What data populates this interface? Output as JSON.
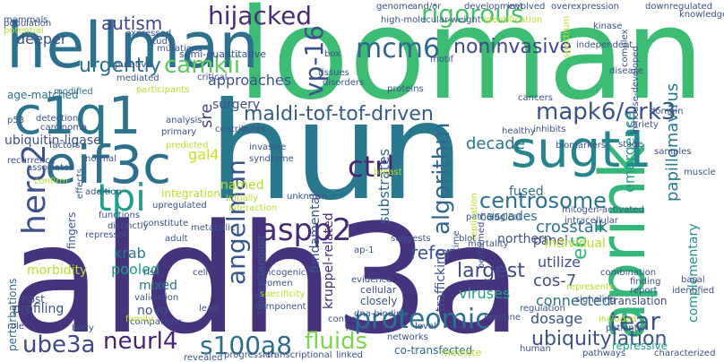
{
  "words": [
    {
      "text": "hun",
      "color": "#2a788e"
    },
    {
      "text": "aldh3a",
      "color": "#46337e"
    },
    {
      "text": "looman",
      "color": "#3dbc74"
    },
    {
      "text": "hellman",
      "color": "#2c728e"
    },
    {
      "text": "aprink",
      "color": "#35b779"
    },
    {
      "text": "c1q1",
      "color": "#2b758e"
    },
    {
      "text": "eif3c",
      "color": "#2d708e"
    },
    {
      "text": "sugt1",
      "color": "#25858e"
    },
    {
      "text": "mapk6/erk3",
      "color": "#3b528b"
    },
    {
      "text": "maldi-tof-tof-driven",
      "color": "#365c8d"
    },
    {
      "text": "vp-16",
      "color": "#3b528b"
    },
    {
      "text": "mcm6",
      "color": "#31688e"
    },
    {
      "text": "rigorous",
      "color": "#4ac16d"
    },
    {
      "text": "hijacked",
      "color": "#472d7b"
    },
    {
      "text": "noninvasive",
      "color": "#3e4989"
    },
    {
      "text": "tpi",
      "color": "#1fa088"
    },
    {
      "text": "camkii",
      "color": "#5ec962"
    },
    {
      "text": "urgently",
      "color": "#2d708e"
    },
    {
      "text": "autism",
      "color": "#404688"
    },
    {
      "text": "deeper",
      "color": "#3b528b"
    },
    {
      "text": "herc2",
      "color": "#3b528b"
    },
    {
      "text": "angelman",
      "color": "#39568c"
    },
    {
      "text": "aspp2",
      "color": "#472a7a"
    },
    {
      "text": "ctrl",
      "color": "#482475"
    },
    {
      "text": "algorithm",
      "color": "#31688e"
    },
    {
      "text": "centrosome",
      "color": "#2c728e"
    },
    {
      "text": "proteomic",
      "color": "#2c738e"
    },
    {
      "text": "tear",
      "color": "#3b528b"
    },
    {
      "text": "neurl4",
      "color": "#482374"
    },
    {
      "text": "s100a8",
      "color": "#2f6c8e"
    },
    {
      "text": "ube3a",
      "color": "#3e4989"
    },
    {
      "text": "fluids",
      "color": "#7fd34e"
    },
    {
      "text": "ubiquitylation",
      "color": "#3b528b"
    },
    {
      "text": "papillomavirus",
      "color": "#2a788e"
    },
    {
      "text": "emergence",
      "color": "#1fa088"
    },
    {
      "text": "complementary",
      "color": "#21918c"
    },
    {
      "text": "approaches",
      "color": "#3b528b"
    },
    {
      "text": "ubiquitin-ligase",
      "color": "#3b528b"
    },
    {
      "text": "surgery",
      "color": "#3b528b"
    },
    {
      "text": "sre",
      "color": "#3e4989"
    },
    {
      "text": "gal4",
      "color": "#c8e020"
    },
    {
      "text": "decade",
      "color": "#2c738e"
    },
    {
      "text": "fused",
      "color": "#2c728e"
    },
    {
      "text": "named",
      "color": "#b5de2b"
    },
    {
      "text": "krab",
      "color": "#2a788e"
    },
    {
      "text": "pooled",
      "color": "#1fa088"
    },
    {
      "text": "mixed",
      "color": "#2c728e"
    },
    {
      "text": "largest",
      "color": "#3e4989"
    },
    {
      "text": "refer",
      "color": "#3b528b"
    },
    {
      "text": "e6",
      "color": "#35b779"
    },
    {
      "text": "cos-7",
      "color": "#3b528b"
    },
    {
      "text": "dosage",
      "color": "#3b528b"
    },
    {
      "text": "crosstalk",
      "color": "#2c728e"
    },
    {
      "text": "panel",
      "color": "#404688"
    },
    {
      "text": "viruses",
      "color": "#1fa088"
    },
    {
      "text": "utilize",
      "color": "#3b528b"
    },
    {
      "text": "connected",
      "color": "#2c728e"
    },
    {
      "text": "northern",
      "color": "#3b528b"
    },
    {
      "text": "cascades",
      "color": "#2c728e"
    },
    {
      "text": "individual",
      "color": "#b5de2b"
    },
    {
      "text": "kruppel-related",
      "color": "#472d7b"
    },
    {
      "text": "substrates",
      "color": "#31688e"
    },
    {
      "text": "fundamental",
      "color": "#3b528b"
    },
    {
      "text": "understanding",
      "color": "#3b528b"
    },
    {
      "text": "morbidity",
      "color": "#b5de2b"
    },
    {
      "text": "perturbations",
      "color": "#31688e"
    },
    {
      "text": "fingers",
      "color": "#3b528b"
    },
    {
      "text": "novo",
      "color": "#3b528b"
    },
    {
      "text": "trafficking",
      "color": "#3b528b"
    },
    {
      "text": "translation",
      "color": "#3e4989"
    },
    {
      "text": "repressive",
      "color": "#1fa088"
    },
    {
      "text": "co-transfected",
      "color": "#31688e"
    },
    {
      "text": "profiling",
      "color": "#3b528b"
    },
    {
      "text": "host",
      "color": "#3b528b"
    },
    {
      "text": "semi-quantitative",
      "color": "#3b528b"
    },
    {
      "text": "mammals",
      "color": "#3b528b"
    },
    {
      "text": "box",
      "color": "#3b528b"
    },
    {
      "text": "motif",
      "color": "#3b528b"
    },
    {
      "text": "age-matched",
      "color": "#2c728e"
    },
    {
      "text": "participants",
      "color": "#b5de2b"
    },
    {
      "text": "modified",
      "color": "#2c728e"
    },
    {
      "text": "critical",
      "color": "#3b528b"
    },
    {
      "text": "tissues",
      "color": "#3b528b"
    },
    {
      "text": "disorders",
      "color": "#3b528b"
    },
    {
      "text": "proteins",
      "color": "#3b528b"
    },
    {
      "text": "high-molecular-weight",
      "color": "#3b528b"
    },
    {
      "text": "identification",
      "color": "#b5de2b"
    },
    {
      "text": "overexpression",
      "color": "#3b528b"
    },
    {
      "text": "downregulated",
      "color": "#3b528b"
    },
    {
      "text": "knowledge",
      "color": "#3b528b"
    },
    {
      "text": "kinase",
      "color": "#3b528b"
    },
    {
      "text": "complex",
      "color": "#3b528b"
    },
    {
      "text": "independent",
      "color": "#3b528b"
    },
    {
      "text": "disease",
      "color": "#3b528b"
    },
    {
      "text": "spectrum",
      "color": "#b5de2b"
    },
    {
      "text": "in-house-developed",
      "color": "#3b528b"
    },
    {
      "text": "domain",
      "color": "#3b528b"
    },
    {
      "text": "cancers",
      "color": "#3b528b"
    },
    {
      "text": "healthy",
      "color": "#3b528b"
    },
    {
      "text": "inhibits",
      "color": "#3b528b"
    },
    {
      "text": "biomarkers",
      "color": "#3b528b"
    },
    {
      "text": "variety",
      "color": "#3b528b"
    },
    {
      "text": "stage",
      "color": "#3b528b"
    },
    {
      "text": "samples",
      "color": "#3b528b"
    },
    {
      "text": "muscle",
      "color": "#3b528b"
    },
    {
      "text": "mitogen-activated",
      "color": "#3b528b"
    },
    {
      "text": "intracellular",
      "color": "#3b528b"
    },
    {
      "text": "pathological",
      "color": "#3b528b"
    },
    {
      "text": "replication",
      "color": "#b5de2b"
    },
    {
      "text": "mortality",
      "color": "#3b528b"
    },
    {
      "text": "combination",
      "color": "#3b528b"
    },
    {
      "text": "represents",
      "color": "#b5de2b"
    },
    {
      "text": "signaling",
      "color": "#3b528b"
    },
    {
      "text": "finding",
      "color": "#3b528b"
    },
    {
      "text": "report",
      "color": "#3b528b"
    },
    {
      "text": "basal",
      "color": "#3b528b"
    },
    {
      "text": "identified",
      "color": "#3b528b"
    },
    {
      "text": "regulation",
      "color": "#3b528b"
    },
    {
      "text": "included",
      "color": "#b5de2b"
    },
    {
      "text": "patients",
      "color": "#3b528b"
    },
    {
      "text": "pathways",
      "color": "#3b528b"
    },
    {
      "text": "characterized",
      "color": "#3b528b"
    },
    {
      "text": "human",
      "color": "#3b528b"
    },
    {
      "text": "immune",
      "color": "#3b528b"
    },
    {
      "text": "mediate",
      "color": "#b5de2b"
    },
    {
      "text": "ap-1",
      "color": "#3b528b"
    },
    {
      "text": "suggests",
      "color": "#3b528b"
    },
    {
      "text": "blot",
      "color": "#3b528b"
    },
    {
      "text": "time",
      "color": "#3b528b"
    },
    {
      "text": "performed",
      "color": "#3b528b"
    },
    {
      "text": "interaction",
      "color": "#b5de2b"
    },
    {
      "text": "initially",
      "color": "#b5de2b"
    },
    {
      "text": "unknown",
      "color": "#3b528b"
    },
    {
      "text": "breast",
      "color": "#b5de2b"
    },
    {
      "text": "invasive",
      "color": "#3b528b"
    },
    {
      "text": "syndrome",
      "color": "#3b528b"
    },
    {
      "text": "evidence",
      "color": "#3b528b"
    },
    {
      "text": "cellular",
      "color": "#3b528b"
    },
    {
      "text": "closely",
      "color": "#3b528b"
    },
    {
      "text": "dna-binding",
      "color": "#3b528b"
    },
    {
      "text": "mapk",
      "color": "#3b528b"
    },
    {
      "text": "level",
      "color": "#3b528b"
    },
    {
      "text": "networks",
      "color": "#3b528b"
    },
    {
      "text": "control",
      "color": "#3b528b"
    },
    {
      "text": "linked",
      "color": "#3b528b"
    },
    {
      "text": "oncogenic",
      "color": "#3b528b"
    },
    {
      "text": "women",
      "color": "#3b528b"
    },
    {
      "text": "specificity",
      "color": "#b5de2b"
    },
    {
      "text": "component",
      "color": "#3b528b"
    },
    {
      "text": "transcriptional",
      "color": "#3b528b"
    },
    {
      "text": "progression",
      "color": "#3b528b"
    },
    {
      "text": "revealed",
      "color": "#3b528b"
    },
    {
      "text": "adult",
      "color": "#3b528b"
    },
    {
      "text": "metabolic",
      "color": "#3b528b"
    },
    {
      "text": "validation",
      "color": "#3b528b"
    },
    {
      "text": "comparison",
      "color": "#3b528b"
    },
    {
      "text": "family",
      "color": "#b5de2b"
    },
    {
      "text": "lead",
      "color": "#3b528b"
    },
    {
      "text": "functions",
      "color": "#3b528b"
    },
    {
      "text": "repressor",
      "color": "#3b528b"
    },
    {
      "text": "constitute",
      "color": "#3b528b"
    },
    {
      "text": "distinctly",
      "color": "#3b528b"
    },
    {
      "text": "upregulated",
      "color": "#3b528b"
    },
    {
      "text": "integration",
      "color": "#b5de2b"
    },
    {
      "text": "predicted",
      "color": "#b5de2b"
    },
    {
      "text": "primary",
      "color": "#3b528b"
    },
    {
      "text": "analysis",
      "color": "#3b528b"
    },
    {
      "text": "detection",
      "color": "#3b528b"
    },
    {
      "text": "carcinoma",
      "color": "#3b528b"
    },
    {
      "text": "p53",
      "color": "#3b528b"
    },
    {
      "text": "recurrence",
      "color": "#3b528b"
    },
    {
      "text": "associates",
      "color": "#3b528b"
    },
    {
      "text": "confirm",
      "color": "#b5de2b"
    },
    {
      "text": "addition",
      "color": "#3b528b"
    },
    {
      "text": "normal",
      "color": "#3b528b"
    },
    {
      "text": "effects",
      "color": "#3b528b"
    },
    {
      "text": "factors",
      "color": "#3b528b"
    },
    {
      "text": "putative",
      "color": "#3b528b"
    },
    {
      "text": "mediated",
      "color": "#3b528b"
    },
    {
      "text": "population",
      "color": "#3b528b"
    },
    {
      "text": "potential",
      "color": "#b5de2b"
    },
    {
      "text": "expressed",
      "color": "#3b528b"
    },
    {
      "text": "study",
      "color": "#3b528b"
    },
    {
      "text": "mutations",
      "color": "#3b528b"
    },
    {
      "text": "development",
      "color": "#3b528b"
    },
    {
      "text": "genome",
      "color": "#3b528b"
    },
    {
      "text": "and/or",
      "color": "#3b528b"
    },
    {
      "text": "involved",
      "color": "#3b528b"
    },
    {
      "text": "contributes",
      "color": "#3b528b"
    },
    {
      "text": "role",
      "color": "#3b528b"
    },
    {
      "text": "body",
      "color": "#3b528b"
    },
    {
      "text": "risk",
      "color": "#3b528b"
    },
    {
      "text": "cell",
      "color": "#3b528b"
    },
    {
      "text": "lines",
      "color": "#3b528b"
    }
  ]
}
